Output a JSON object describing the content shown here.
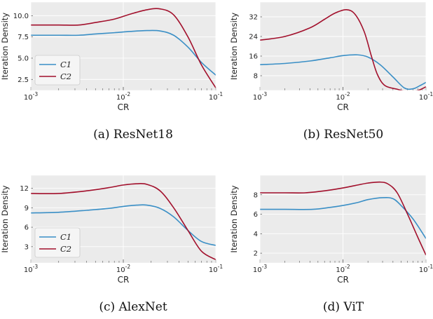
{
  "colors": {
    "c1": "#3a8fc6",
    "c2": "#a2102c",
    "panel_bg": "#ebebeb",
    "grid": "#ffffff"
  },
  "chart_data": [
    {
      "type": "line",
      "caption": "(a) ResNet18",
      "xlabel": "CR",
      "ylabel": "Iteration Density",
      "xscale": "log",
      "xlim": [
        0.001,
        0.1
      ],
      "ylim": [
        1.2,
        11.6
      ],
      "yticks": [
        "2.5",
        "5.0",
        "7.5",
        "10.0"
      ],
      "xticks": [
        "10^-3",
        "10^-2",
        "10^-1"
      ],
      "legend": "lower-left",
      "series": [
        {
          "name": "C1",
          "x": [
            0.001,
            0.002,
            0.0033,
            0.005,
            0.008,
            0.012,
            0.018,
            0.025,
            0.035,
            0.05,
            0.07,
            0.1
          ],
          "y": [
            7.7,
            7.7,
            7.7,
            7.85,
            8.0,
            8.15,
            8.25,
            8.2,
            7.7,
            6.3,
            4.5,
            3.0
          ]
        },
        {
          "name": "C2",
          "x": [
            0.001,
            0.002,
            0.0033,
            0.005,
            0.008,
            0.012,
            0.018,
            0.025,
            0.035,
            0.05,
            0.07,
            0.1
          ],
          "y": [
            8.9,
            8.9,
            8.9,
            9.2,
            9.6,
            10.2,
            10.7,
            10.8,
            10.1,
            7.5,
            4.2,
            1.5
          ]
        }
      ]
    },
    {
      "type": "line",
      "caption": "(b) ResNet50",
      "xlabel": "CR",
      "ylabel": "Iteration Density",
      "xscale": "log",
      "xlim": [
        0.001,
        0.1
      ],
      "ylim": [
        2,
        38
      ],
      "yticks": [
        "8",
        "16",
        "24",
        "32"
      ],
      "xticks": [
        "10^-3",
        "10^-2",
        "10^-1"
      ],
      "legend": "none",
      "series": [
        {
          "name": "C1",
          "x": [
            0.001,
            0.002,
            0.004,
            0.007,
            0.01,
            0.015,
            0.02,
            0.028,
            0.04,
            0.055,
            0.07,
            0.085,
            0.1
          ],
          "y": [
            12.5,
            13.0,
            14.0,
            15.3,
            16.2,
            16.5,
            15.6,
            12.5,
            7.5,
            3.0,
            2.7,
            4.0,
            5.3
          ]
        },
        {
          "name": "C2",
          "x": [
            0.001,
            0.002,
            0.004,
            0.006,
            0.008,
            0.011,
            0.014,
            0.018,
            0.022,
            0.026,
            0.032,
            0.045,
            0.06,
            0.08,
            0.1
          ],
          "y": [
            22.5,
            24.0,
            27.5,
            31.0,
            33.5,
            34.9,
            33.0,
            26.0,
            16.0,
            8.5,
            4.0,
            2.5,
            1.5,
            2.0,
            3.5
          ]
        }
      ]
    },
    {
      "type": "line",
      "caption": "(c) AlexNet",
      "xlabel": "CR",
      "ylabel": "Iteration Density",
      "xscale": "log",
      "xlim": [
        0.001,
        0.1
      ],
      "ylim": [
        0.5,
        14
      ],
      "yticks": [
        "3",
        "6",
        "9",
        "12"
      ],
      "xticks": [
        "10^-3",
        "10^-2",
        "10^-1"
      ],
      "legend": "lower-left",
      "series": [
        {
          "name": "C1",
          "x": [
            0.001,
            0.002,
            0.004,
            0.007,
            0.01,
            0.014,
            0.018,
            0.025,
            0.035,
            0.05,
            0.07,
            0.1
          ],
          "y": [
            8.2,
            8.3,
            8.6,
            8.9,
            9.2,
            9.4,
            9.4,
            8.9,
            7.6,
            5.5,
            3.8,
            3.2
          ]
        },
        {
          "name": "C2",
          "x": [
            0.001,
            0.002,
            0.004,
            0.007,
            0.01,
            0.014,
            0.018,
            0.025,
            0.035,
            0.05,
            0.07,
            0.1
          ],
          "y": [
            11.2,
            11.2,
            11.6,
            12.1,
            12.5,
            12.7,
            12.6,
            11.6,
            9.0,
            5.5,
            2.3,
            1.0
          ]
        }
      ]
    },
    {
      "type": "line",
      "caption": "(d) ViT",
      "xlabel": "CR",
      "ylabel": "Iteration Density",
      "xscale": "log",
      "xlim": [
        0.001,
        0.1
      ],
      "ylim": [
        1,
        10
      ],
      "yticks": [
        "2",
        "4",
        "6",
        "8"
      ],
      "xticks": [
        "10^-3",
        "10^-2",
        "10^-1"
      ],
      "legend": "none",
      "series": [
        {
          "name": "C1",
          "x": [
            0.001,
            0.002,
            0.0043,
            0.007,
            0.01,
            0.015,
            0.02,
            0.03,
            0.04,
            0.05,
            0.07,
            0.1
          ],
          "y": [
            6.5,
            6.5,
            6.5,
            6.7,
            6.9,
            7.2,
            7.5,
            7.7,
            7.6,
            6.9,
            5.5,
            3.5
          ]
        },
        {
          "name": "C2",
          "x": [
            0.001,
            0.002,
            0.0035,
            0.006,
            0.01,
            0.015,
            0.02,
            0.028,
            0.035,
            0.045,
            0.06,
            0.08,
            0.1
          ],
          "y": [
            8.2,
            8.2,
            8.2,
            8.4,
            8.7,
            9.0,
            9.2,
            9.3,
            9.1,
            8.2,
            6.0,
            3.6,
            1.8
          ]
        }
      ]
    }
  ]
}
